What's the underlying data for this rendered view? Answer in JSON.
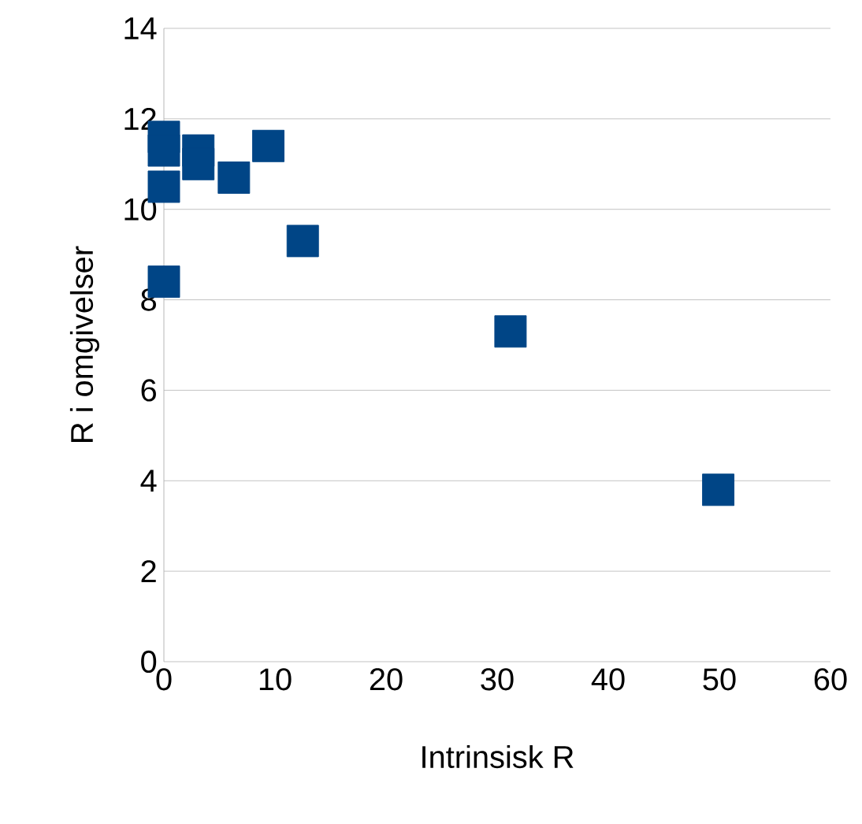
{
  "chart_data": {
    "type": "scatter",
    "xlabel": "Intrinsisk R",
    "ylabel": "R i omgivelser",
    "x": [
      0,
      0,
      0,
      0,
      3.1,
      3.1,
      6.3,
      9.4,
      12.5,
      31.2,
      49.9
    ],
    "series": [
      {
        "color": "#004586",
        "values": [
          11.6,
          11.3,
          10.5,
          8.4,
          11.3,
          11.0,
          10.7,
          11.4,
          9.3,
          7.3,
          3.8
        ]
      }
    ],
    "xlim": [
      0,
      60
    ],
    "ylim": [
      0,
      14
    ],
    "xticks": [
      0,
      10,
      20,
      30,
      40,
      50,
      60
    ],
    "yticks": [
      0,
      2,
      4,
      6,
      8,
      10,
      12,
      14
    ],
    "grid": "y",
    "marker": "square"
  }
}
